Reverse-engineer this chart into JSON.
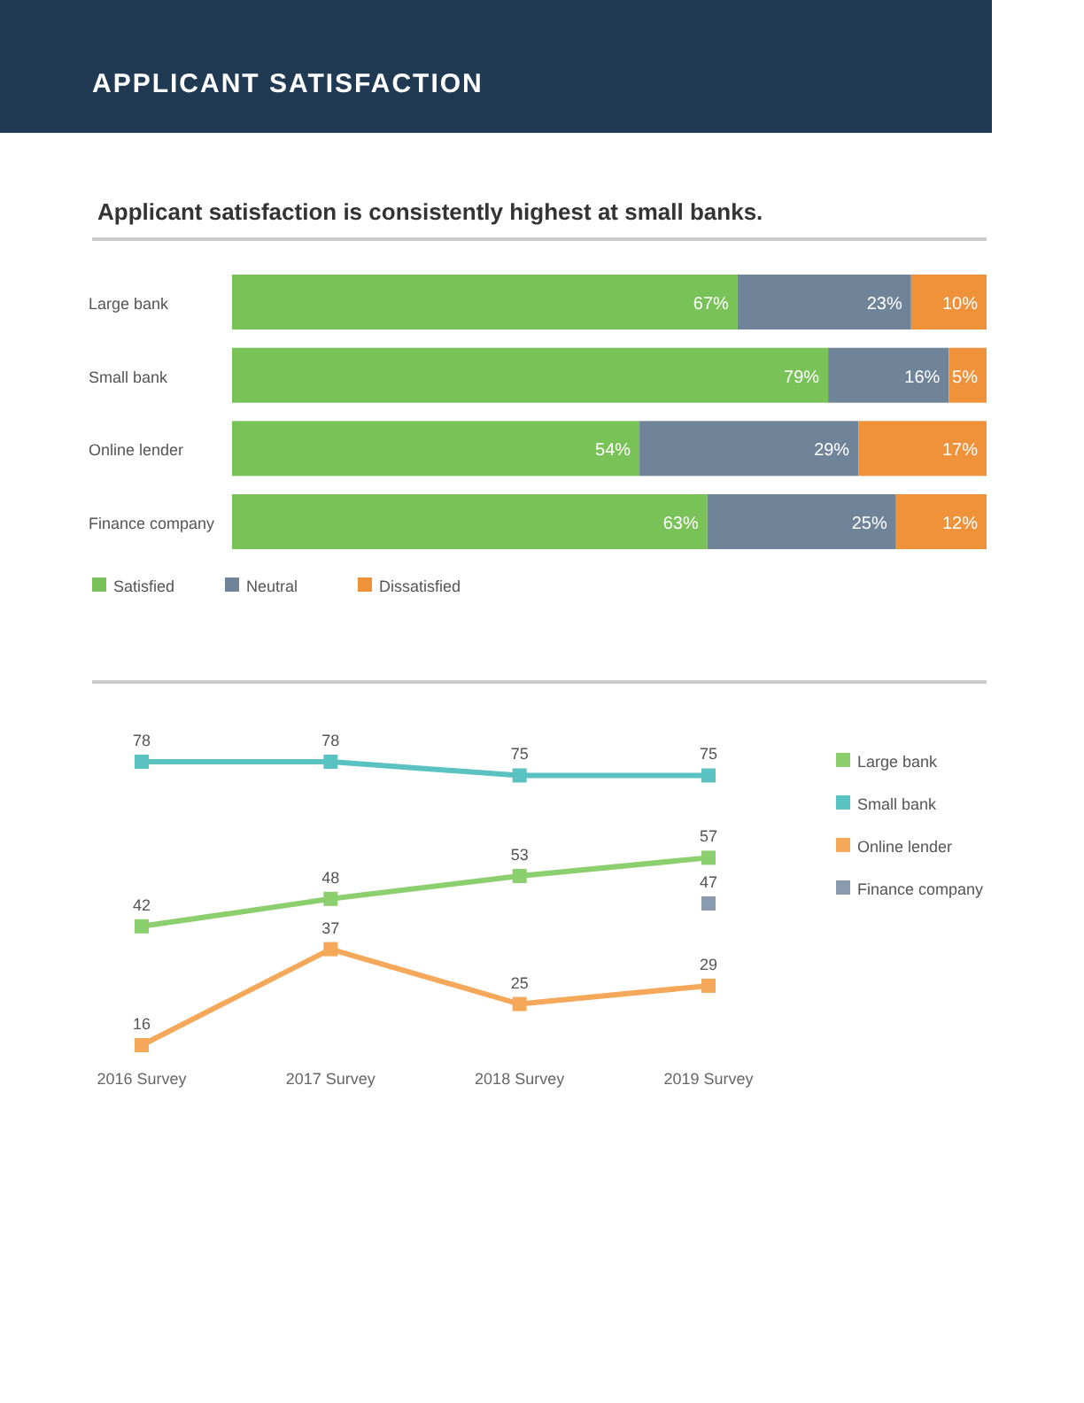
{
  "chart_data": [
    {
      "type": "bar",
      "title": "APPLICANT SATISFACTION",
      "subtitle": "Applicant satisfaction is consistently highest at small banks.",
      "orientation": "horizontal",
      "stacked": true,
      "legend": "bottom left",
      "categories": [
        "Large bank",
        "Small bank",
        "Online lender",
        "Finance company"
      ],
      "series": [
        {
          "name": "Satisfied",
          "color": "#78c257",
          "values": [
            67,
            79,
            54,
            63
          ],
          "value_labels": [
            "67%",
            "79%",
            "54%",
            "63%"
          ]
        },
        {
          "name": "Neutral",
          "color": "#6f8499",
          "values": [
            23,
            16,
            29,
            25
          ],
          "value_labels": [
            "23%",
            "16%",
            "29%",
            "25%"
          ]
        },
        {
          "name": "Dissatisfied",
          "color": "#f0923a",
          "values": [
            10,
            5,
            17,
            12
          ],
          "value_labels": [
            "10%",
            "5%",
            "17%",
            "12%"
          ]
        }
      ]
    },
    {
      "type": "line",
      "marker": "square",
      "data_labels": true,
      "legend": "right",
      "categories": [
        "2016 Survey",
        "2017 Survey",
        "2018 Survey",
        "2019 Survey"
      ],
      "series": [
        {
          "name": "Large bank",
          "color": "#8ccf6e",
          "values": [
            42,
            48,
            53,
            57
          ]
        },
        {
          "name": "Small bank",
          "color": "#5bc2c2",
          "values": [
            78,
            78,
            75,
            75
          ]
        },
        {
          "name": "Online lender",
          "color": "#f5a85a",
          "values": [
            16,
            37,
            25,
            29
          ]
        },
        {
          "name": "Finance company",
          "color": "#8a9bb0",
          "values": [
            null,
            null,
            null,
            47
          ]
        }
      ]
    }
  ]
}
